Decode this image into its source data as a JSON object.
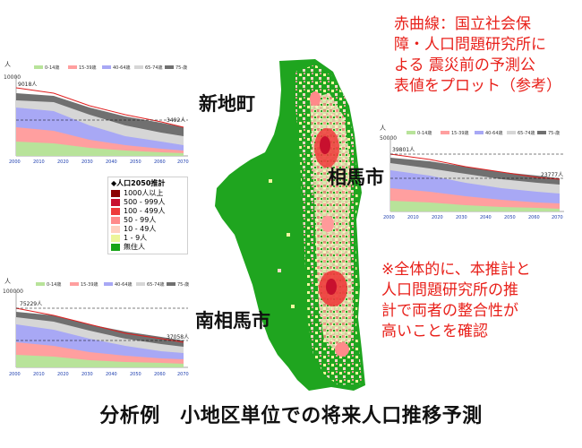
{
  "charts": [
    {
      "id": "shinchi",
      "unit": "人",
      "ymax": "10000",
      "start": "9018人",
      "end": "3492人",
      "years": [
        "2000",
        "2010",
        "2020",
        "2030",
        "2040",
        "2050",
        "2060",
        "2070"
      ]
    },
    {
      "id": "soma",
      "unit": "人",
      "ymax": "50000",
      "start": "39801人",
      "end": "23777人",
      "years": [
        "2000",
        "2010",
        "2020",
        "2030",
        "2040",
        "2050",
        "2060",
        "2070"
      ]
    },
    {
      "id": "minamisoma",
      "unit": "人",
      "ymax": "100000",
      "start": "75229人",
      "end": "37058人",
      "years": [
        "2000",
        "2010",
        "2020",
        "2030",
        "2040",
        "2050",
        "2060",
        "2070"
      ]
    }
  ],
  "age_groups": [
    "0-14歳",
    "15-39歳",
    "40-64歳",
    "65-74歳",
    "75-歳"
  ],
  "age_colors": [
    "#b8e39a",
    "#ff9f9f",
    "#a8a8f5",
    "#d6d6d6",
    "#707070"
  ],
  "legend": {
    "title": "◆人口2050推計",
    "items": [
      {
        "label": "1000人以上",
        "color": "#8b0000"
      },
      {
        "label": "500 - 999人",
        "color": "#c8102e"
      },
      {
        "label": "100 - 499人",
        "color": "#ee3b3b"
      },
      {
        "label": "50 - 99人",
        "color": "#ff8a8a"
      },
      {
        "label": "10 - 49人",
        "color": "#ffd0c0"
      },
      {
        "label": "1 - 9人",
        "color": "#ecf59a"
      },
      {
        "label": "無住人",
        "color": "#18a418"
      }
    ]
  },
  "labels": {
    "shinchi": "新地町",
    "soma": "相馬市",
    "minamisoma": "南相馬市"
  },
  "notes": {
    "red_line": [
      "赤曲線：国立社会保",
      "障・人口問題研究所に",
      "よる 震災前の予測公",
      "表値をプロット（参考）"
    ],
    "conclusion": [
      "※全体的に、本推計と",
      "人口問題研究所の推",
      "計で両者の整合性が",
      "高いことを確認"
    ]
  },
  "caption": "分析例　小地区単位での将来人口推移予測"
}
